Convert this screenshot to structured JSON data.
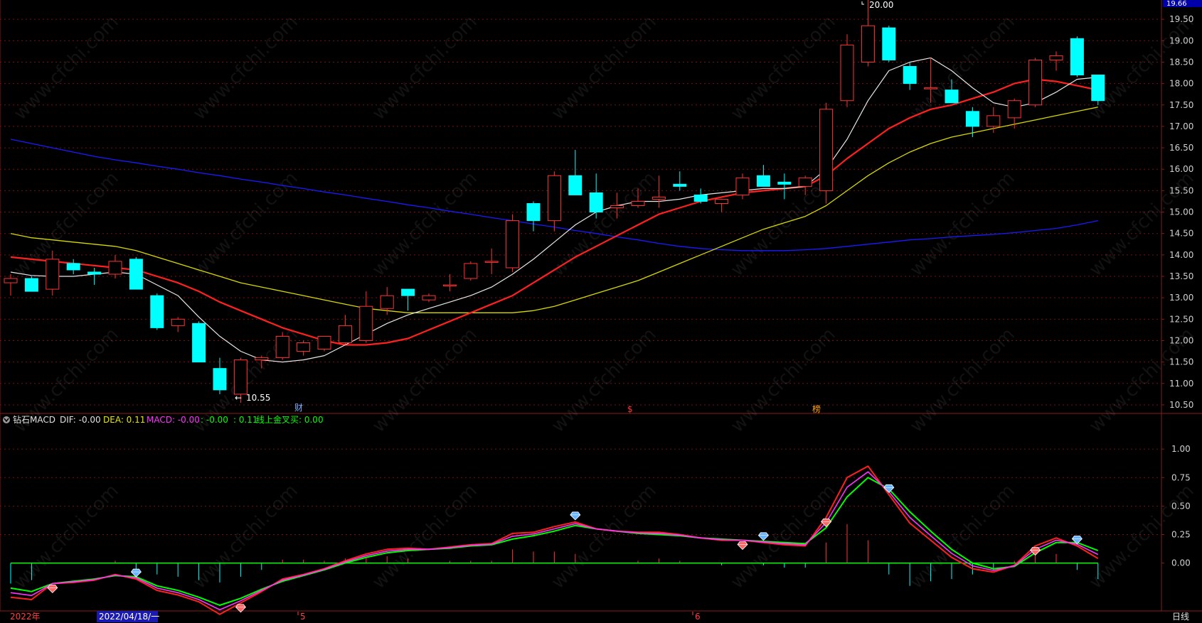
{
  "colors": {
    "up": "#ff3232",
    "down": "#00ffff",
    "ma5": "#e6e6e6",
    "ma10": "#ff2020",
    "ma20": "#d8d800",
    "ma60": "#1a1aff",
    "dif": "#ff2020",
    "dea": "#00ff00",
    "macd_line": "#ff33ff",
    "axis": "#8b1a1a",
    "grid": "#7a1010",
    "text": "#c8c8c8"
  },
  "price_axis": {
    "ticks": [
      "19.50",
      "19.00",
      "18.50",
      "18.00",
      "17.50",
      "17.00",
      "16.50",
      "16.00",
      "15.50",
      "15.00",
      "14.50",
      "14.00",
      "13.50",
      "13.00",
      "12.50",
      "12.00",
      "11.50",
      "11.00",
      "10.50"
    ],
    "top_value": "19.66"
  },
  "indicator_axis": {
    "ticks": [
      "1.00",
      "0.75",
      "0.50",
      "0.25",
      "0.00"
    ]
  },
  "indicator_legend": {
    "name": "钻石MACD",
    "dif_label": "DIF: -0.00",
    "dea_label": "DEA: 0.11",
    "macd_label": "MACD: -0.00",
    "extra1": ": -0.00",
    "extra2": ": 0.11",
    "extra3": "线上金叉买: 0.00"
  },
  "annotations": {
    "high_label": "20.00",
    "low_label": "10.55",
    "marker_cai": "财",
    "marker_s": "$",
    "marker_bang": "榜"
  },
  "time_axis": {
    "year_label": "2022年",
    "cursor_label": "2022/04/18/一",
    "month5": "5",
    "month6": "6",
    "period_label": "日线"
  },
  "chart_data": {
    "type": "candlestick",
    "price_range": [
      10.3,
      19.95
    ],
    "candles": [
      {
        "o": 13.35,
        "h": 13.55,
        "l": 13.05,
        "c": 13.45
      },
      {
        "o": 13.45,
        "h": 13.5,
        "l": 13.15,
        "c": 13.15
      },
      {
        "o": 13.2,
        "h": 14.1,
        "l": 13.05,
        "c": 13.9
      },
      {
        "o": 13.8,
        "h": 13.9,
        "l": 13.55,
        "c": 13.65
      },
      {
        "o": 13.6,
        "h": 13.7,
        "l": 13.3,
        "c": 13.55
      },
      {
        "o": 13.55,
        "h": 14.0,
        "l": 13.45,
        "c": 13.85
      },
      {
        "o": 13.9,
        "h": 13.95,
        "l": 13.2,
        "c": 13.2
      },
      {
        "o": 13.05,
        "h": 13.1,
        "l": 12.25,
        "c": 12.3
      },
      {
        "o": 12.35,
        "h": 12.55,
        "l": 12.2,
        "c": 12.5
      },
      {
        "o": 12.4,
        "h": 12.45,
        "l": 11.5,
        "c": 11.5
      },
      {
        "o": 11.35,
        "h": 11.6,
        "l": 10.75,
        "c": 10.85
      },
      {
        "o": 10.75,
        "h": 11.6,
        "l": 10.55,
        "c": 11.55
      },
      {
        "o": 11.55,
        "h": 11.65,
        "l": 11.35,
        "c": 11.6
      },
      {
        "o": 11.6,
        "h": 12.2,
        "l": 11.55,
        "c": 12.1
      },
      {
        "o": 11.75,
        "h": 12.0,
        "l": 11.65,
        "c": 11.95
      },
      {
        "o": 11.8,
        "h": 12.1,
        "l": 11.75,
        "c": 12.1
      },
      {
        "o": 11.95,
        "h": 12.6,
        "l": 11.9,
        "c": 12.35
      },
      {
        "o": 12.0,
        "h": 13.15,
        "l": 11.95,
        "c": 12.8
      },
      {
        "o": 12.75,
        "h": 13.25,
        "l": 12.6,
        "c": 13.05
      },
      {
        "o": 13.2,
        "h": 13.2,
        "l": 12.7,
        "c": 13.05
      },
      {
        "o": 12.95,
        "h": 13.1,
        "l": 12.9,
        "c": 13.05
      },
      {
        "o": 13.3,
        "h": 13.55,
        "l": 13.15,
        "c": 13.3
      },
      {
        "o": 13.45,
        "h": 13.85,
        "l": 13.4,
        "c": 13.8
      },
      {
        "o": 13.85,
        "h": 14.15,
        "l": 13.55,
        "c": 13.85
      },
      {
        "o": 13.7,
        "h": 14.95,
        "l": 13.6,
        "c": 14.8
      },
      {
        "o": 15.2,
        "h": 15.25,
        "l": 14.55,
        "c": 14.8
      },
      {
        "o": 14.8,
        "h": 15.95,
        "l": 14.55,
        "c": 15.85
      },
      {
        "o": 15.85,
        "h": 16.45,
        "l": 15.4,
        "c": 15.4
      },
      {
        "o": 15.45,
        "h": 15.9,
        "l": 14.85,
        "c": 15.0
      },
      {
        "o": 15.1,
        "h": 15.45,
        "l": 14.85,
        "c": 15.15
      },
      {
        "o": 15.15,
        "h": 15.55,
        "l": 15.1,
        "c": 15.25
      },
      {
        "o": 15.3,
        "h": 15.85,
        "l": 15.1,
        "c": 15.35
      },
      {
        "o": 15.65,
        "h": 15.95,
        "l": 15.5,
        "c": 15.6
      },
      {
        "o": 15.4,
        "h": 15.55,
        "l": 15.2,
        "c": 15.25
      },
      {
        "o": 15.2,
        "h": 15.3,
        "l": 15.0,
        "c": 15.3
      },
      {
        "o": 15.4,
        "h": 15.9,
        "l": 15.3,
        "c": 15.8
      },
      {
        "o": 15.85,
        "h": 16.1,
        "l": 15.6,
        "c": 15.6
      },
      {
        "o": 15.7,
        "h": 15.9,
        "l": 15.3,
        "c": 15.65
      },
      {
        "o": 15.6,
        "h": 15.85,
        "l": 15.4,
        "c": 15.8
      },
      {
        "o": 15.5,
        "h": 17.55,
        "l": 15.2,
        "c": 17.4
      },
      {
        "o": 17.6,
        "h": 19.15,
        "l": 17.45,
        "c": 18.9
      },
      {
        "o": 18.5,
        "h": 20.0,
        "l": 18.4,
        "c": 19.35
      },
      {
        "o": 19.3,
        "h": 19.35,
        "l": 18.5,
        "c": 18.55
      },
      {
        "o": 18.4,
        "h": 18.5,
        "l": 17.85,
        "c": 18.0
      },
      {
        "o": 17.9,
        "h": 18.6,
        "l": 17.55,
        "c": 17.9
      },
      {
        "o": 17.85,
        "h": 18.1,
        "l": 17.55,
        "c": 17.55
      },
      {
        "o": 17.35,
        "h": 17.45,
        "l": 16.75,
        "c": 17.0
      },
      {
        "o": 17.0,
        "h": 17.45,
        "l": 16.85,
        "c": 17.25
      },
      {
        "o": 17.2,
        "h": 17.65,
        "l": 16.95,
        "c": 17.6
      },
      {
        "o": 17.5,
        "h": 18.6,
        "l": 17.45,
        "c": 18.55
      },
      {
        "o": 18.55,
        "h": 18.75,
        "l": 18.3,
        "c": 18.65
      },
      {
        "o": 19.05,
        "h": 19.1,
        "l": 18.15,
        "c": 18.2
      },
      {
        "o": 18.2,
        "h": 18.2,
        "l": 17.5,
        "c": 17.6
      }
    ],
    "ma5": [
      13.6,
      13.52,
      13.5,
      13.5,
      13.55,
      13.6,
      13.55,
      13.3,
      13.05,
      12.55,
      12.1,
      11.75,
      11.55,
      11.5,
      11.55,
      11.65,
      11.9,
      12.15,
      12.4,
      12.6,
      12.75,
      12.9,
      13.05,
      13.25,
      13.55,
      13.9,
      14.3,
      14.7,
      15.0,
      15.15,
      15.25,
      15.25,
      15.3,
      15.4,
      15.45,
      15.5,
      15.55,
      15.55,
      15.6,
      16.0,
      16.7,
      17.6,
      18.3,
      18.5,
      18.6,
      18.3,
      17.9,
      17.55,
      17.45,
      17.55,
      17.8,
      18.1,
      18.15
    ],
    "ma10": [
      13.95,
      13.9,
      13.85,
      13.8,
      13.75,
      13.7,
      13.65,
      13.5,
      13.35,
      13.15,
      12.9,
      12.7,
      12.5,
      12.3,
      12.15,
      12.0,
      11.9,
      11.9,
      11.95,
      12.05,
      12.25,
      12.45,
      12.65,
      12.85,
      13.05,
      13.35,
      13.65,
      13.95,
      14.2,
      14.45,
      14.7,
      14.95,
      15.1,
      15.25,
      15.35,
      15.45,
      15.5,
      15.55,
      15.6,
      15.85,
      16.25,
      16.6,
      16.95,
      17.2,
      17.4,
      17.5,
      17.65,
      17.8,
      18.0,
      18.1,
      18.05,
      17.95,
      17.85
    ],
    "ma20": [
      14.5,
      14.4,
      14.35,
      14.3,
      14.25,
      14.2,
      14.1,
      13.95,
      13.8,
      13.65,
      13.5,
      13.35,
      13.25,
      13.15,
      13.05,
      12.95,
      12.85,
      12.75,
      12.7,
      12.65,
      12.65,
      12.65,
      12.65,
      12.65,
      12.65,
      12.7,
      12.8,
      12.95,
      13.1,
      13.25,
      13.4,
      13.6,
      13.8,
      14.0,
      14.2,
      14.4,
      14.6,
      14.75,
      14.9,
      15.15,
      15.5,
      15.85,
      16.15,
      16.4,
      16.6,
      16.75,
      16.85,
      16.95,
      17.05,
      17.15,
      17.25,
      17.35,
      17.45
    ],
    "ma60": [
      16.7,
      16.6,
      16.5,
      16.4,
      16.3,
      16.22,
      16.15,
      16.07,
      16.0,
      15.92,
      15.85,
      15.77,
      15.7,
      15.62,
      15.55,
      15.47,
      15.4,
      15.32,
      15.25,
      15.17,
      15.1,
      15.02,
      14.95,
      14.87,
      14.8,
      14.72,
      14.65,
      14.57,
      14.5,
      14.42,
      14.35,
      14.27,
      14.2,
      14.15,
      14.12,
      14.1,
      14.1,
      14.1,
      14.12,
      14.15,
      14.2,
      14.25,
      14.3,
      14.35,
      14.38,
      14.42,
      14.45,
      14.48,
      14.52,
      14.57,
      14.62,
      14.7,
      14.8
    ],
    "macd_range": [
      -0.42,
      1.3
    ],
    "dif": [
      -0.3,
      -0.32,
      -0.18,
      -0.17,
      -0.15,
      -0.1,
      -0.14,
      -0.24,
      -0.28,
      -0.34,
      -0.45,
      -0.35,
      -0.25,
      -0.14,
      -0.1,
      -0.05,
      0.02,
      0.08,
      0.12,
      0.13,
      0.12,
      0.14,
      0.16,
      0.17,
      0.26,
      0.27,
      0.32,
      0.36,
      0.3,
      0.28,
      0.27,
      0.27,
      0.25,
      0.22,
      0.2,
      0.2,
      0.18,
      0.16,
      0.15,
      0.4,
      0.75,
      0.85,
      0.6,
      0.35,
      0.2,
      0.05,
      -0.05,
      -0.08,
      -0.02,
      0.15,
      0.22,
      0.15,
      0.04
    ],
    "dea": [
      -0.22,
      -0.25,
      -0.18,
      -0.16,
      -0.14,
      -0.11,
      -0.12,
      -0.2,
      -0.24,
      -0.3,
      -0.37,
      -0.31,
      -0.23,
      -0.16,
      -0.11,
      -0.06,
      0.0,
      0.05,
      0.09,
      0.11,
      0.12,
      0.13,
      0.15,
      0.16,
      0.21,
      0.24,
      0.28,
      0.33,
      0.3,
      0.28,
      0.26,
      0.25,
      0.24,
      0.22,
      0.21,
      0.2,
      0.19,
      0.18,
      0.17,
      0.31,
      0.58,
      0.75,
      0.65,
      0.45,
      0.28,
      0.12,
      0.0,
      -0.05,
      -0.03,
      0.09,
      0.18,
      0.18,
      0.11
    ],
    "macd": [
      -0.18,
      -0.15,
      0.0,
      0.0,
      0.0,
      0.02,
      -0.05,
      -0.1,
      -0.12,
      -0.15,
      -0.17,
      -0.12,
      -0.06,
      0.03,
      0.03,
      0.02,
      0.04,
      0.05,
      0.06,
      0.04,
      0.0,
      0.02,
      0.02,
      0.02,
      0.12,
      0.1,
      0.1,
      0.08,
      0.0,
      0.0,
      0.02,
      0.04,
      0.02,
      0.0,
      -0.02,
      0.0,
      -0.02,
      -0.04,
      -0.04,
      0.18,
      0.34,
      0.2,
      -0.1,
      -0.2,
      -0.16,
      -0.14,
      -0.1,
      -0.06,
      0.02,
      0.12,
      0.08,
      -0.06,
      -0.14
    ],
    "diamonds": [
      {
        "i": 2,
        "type": "buy"
      },
      {
        "i": 6,
        "type": "sell"
      },
      {
        "i": 11,
        "type": "buy"
      },
      {
        "i": 27,
        "type": "sell"
      },
      {
        "i": 35,
        "type": "buy"
      },
      {
        "i": 36,
        "type": "sell"
      },
      {
        "i": 39,
        "type": "buy"
      },
      {
        "i": 42,
        "type": "sell"
      },
      {
        "i": 49,
        "type": "buy"
      },
      {
        "i": 51,
        "type": "sell"
      }
    ]
  }
}
